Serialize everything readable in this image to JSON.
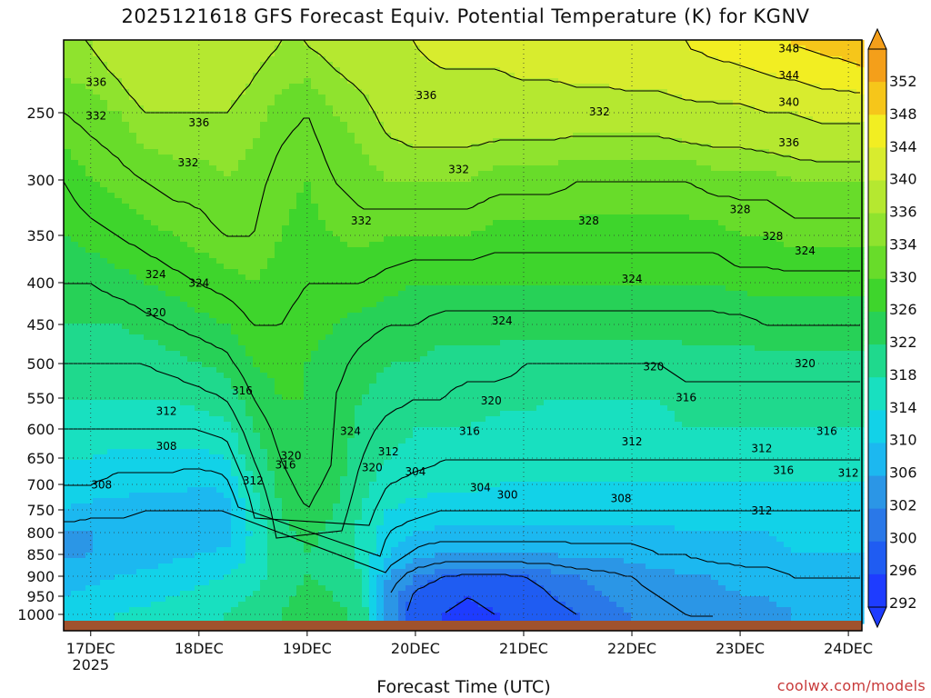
{
  "title": "2025121618 GFS Forecast Equiv. Potential Temperature (K) for KGNV",
  "credit": "coolwx.com/models",
  "colors": {
    "ground": "#a0522d",
    "frame": "#000000"
  },
  "chart_data": {
    "type": "heatmap",
    "title": "2025121618 GFS Forecast Equiv. Potential Temperature (K) for KGNV",
    "xlabel": "Forecast Time (UTC)",
    "ylabel": "",
    "x_ticks": [
      "17DEC",
      "18DEC",
      "19DEC",
      "20DEC",
      "21DEC",
      "22DEC",
      "23DEC",
      "24DEC"
    ],
    "x_year_label": "2025",
    "x_range_days": [
      16.75,
      24.125
    ],
    "y_axis": "pressure (hPa), inverted",
    "y_ticks": [
      250,
      300,
      350,
      400,
      450,
      500,
      550,
      600,
      650,
      700,
      750,
      800,
      850,
      900,
      950,
      1000
    ],
    "y_range": [
      200,
      1030
    ],
    "grid": true,
    "colorbar": {
      "levels": [
        292,
        296,
        300,
        302,
        306,
        310,
        314,
        318,
        322,
        326,
        330,
        334,
        336,
        340,
        344,
        348,
        352
      ],
      "labels": [
        "352",
        "348",
        "344",
        "340",
        "336",
        "334",
        "330",
        "326",
        "322",
        "318",
        "314",
        "310",
        "306",
        "302",
        "300",
        "296",
        "292"
      ],
      "colors": [
        "#1e3cff",
        "#1f5cf2",
        "#2a78e8",
        "#2b96e6",
        "#1cb8f0",
        "#12d2e8",
        "#18e0c0",
        "#1fd98d",
        "#27d157",
        "#3ed52c",
        "#68dc2a",
        "#8fe32e",
        "#b5e830",
        "#d8ec2e",
        "#f2ee22",
        "#f6c61a",
        "#f49f1a"
      ]
    },
    "time_columns_days": [
      16.75,
      17.0,
      17.25,
      17.5,
      17.75,
      18.0,
      18.25,
      18.5,
      18.75,
      19.0,
      19.25,
      19.5,
      19.75,
      20.0,
      20.25,
      20.5,
      20.75,
      21.0,
      21.25,
      21.5,
      21.75,
      22.0,
      22.25,
      22.5,
      22.75,
      23.0,
      23.25,
      23.5,
      23.75,
      24.0,
      24.125
    ],
    "pressure_levels_hpa": [
      200,
      250,
      300,
      350,
      400,
      450,
      500,
      550,
      600,
      650,
      700,
      750,
      800,
      850,
      900,
      950,
      1000
    ],
    "theta_e_k": [
      [
        336,
        336,
        338,
        340,
        340,
        338,
        338,
        337,
        336,
        336,
        337,
        338,
        340,
        340,
        341,
        341,
        341,
        342,
        342,
        343,
        343,
        344,
        344,
        344,
        345,
        346,
        347,
        348,
        349,
        350,
        351
      ],
      [
        332,
        333,
        334,
        336,
        336,
        336,
        336,
        335,
        333,
        332,
        334,
        335,
        337,
        338,
        338,
        338,
        338,
        338,
        338,
        338,
        338,
        338,
        338,
        339,
        339,
        339,
        340,
        340,
        341,
        341,
        341
      ],
      [
        328,
        330,
        331,
        332,
        333,
        333,
        334,
        333,
        331,
        330,
        332,
        333,
        334,
        334,
        334,
        334,
        333,
        333,
        333,
        332,
        332,
        332,
        332,
        332,
        333,
        333,
        333,
        334,
        334,
        334,
        334
      ],
      [
        326,
        327,
        328,
        329,
        330,
        331,
        332,
        332,
        330,
        329,
        330,
        331,
        330,
        330,
        330,
        330,
        329,
        329,
        329,
        329,
        329,
        329,
        329,
        329,
        329,
        330,
        330,
        331,
        331,
        331,
        331
      ],
      [
        324,
        324,
        325,
        326,
        327,
        328,
        329,
        330,
        329,
        328,
        328,
        328,
        327,
        326,
        326,
        326,
        326,
        326,
        326,
        326,
        326,
        326,
        326,
        326,
        326,
        327,
        327,
        327,
        327,
        327,
        327
      ],
      [
        322,
        322,
        322,
        323,
        324,
        325,
        326,
        328,
        328,
        327,
        326,
        325,
        324,
        324,
        323,
        323,
        323,
        323,
        323,
        323,
        323,
        323,
        323,
        323,
        323,
        323,
        324,
        324,
        324,
        324,
        324
      ],
      [
        320,
        320,
        320,
        320,
        321,
        322,
        323,
        326,
        327,
        326,
        325,
        323,
        322,
        322,
        321,
        321,
        321,
        320,
        320,
        320,
        320,
        320,
        320,
        321,
        321,
        321,
        321,
        321,
        321,
        321,
        321
      ],
      [
        318,
        318,
        318,
        318,
        318,
        319,
        320,
        324,
        326,
        326,
        324,
        322,
        321,
        320,
        320,
        319,
        319,
        319,
        318,
        318,
        318,
        318,
        318,
        319,
        319,
        319,
        319,
        319,
        319,
        319,
        319
      ],
      [
        316,
        316,
        316,
        316,
        316,
        316,
        317,
        322,
        325,
        326,
        324,
        321,
        319,
        318,
        318,
        318,
        317,
        317,
        317,
        317,
        317,
        317,
        317,
        318,
        318,
        318,
        318,
        318,
        318,
        318,
        318
      ],
      [
        314,
        314,
        313,
        313,
        313,
        313,
        314,
        320,
        324,
        326,
        324,
        320,
        318,
        317,
        316,
        316,
        316,
        316,
        316,
        316,
        316,
        316,
        316,
        316,
        316,
        316,
        316,
        316,
        316,
        316,
        316
      ],
      [
        312,
        312,
        311,
        311,
        311,
        310,
        311,
        318,
        323,
        325,
        323,
        319,
        316,
        315,
        315,
        315,
        314,
        314,
        314,
        314,
        314,
        314,
        314,
        314,
        314,
        314,
        314,
        314,
        314,
        314,
        314
      ],
      [
        310,
        309,
        309,
        308,
        308,
        308,
        308,
        316,
        322,
        324,
        322,
        318,
        314,
        313,
        312,
        312,
        312,
        312,
        312,
        312,
        312,
        312,
        312,
        312,
        312,
        312,
        312,
        312,
        312,
        312,
        312
      ],
      [
        306,
        306,
        306,
        306,
        306,
        307,
        308,
        315,
        321,
        323,
        321,
        317,
        312,
        310,
        309,
        309,
        309,
        309,
        309,
        309,
        309,
        309,
        309,
        310,
        310,
        310,
        310,
        311,
        311,
        311,
        311
      ],
      [
        305,
        306,
        307,
        308,
        309,
        310,
        311,
        315,
        320,
        322,
        321,
        317,
        310,
        307,
        306,
        306,
        306,
        306,
        306,
        307,
        307,
        307,
        308,
        308,
        309,
        309,
        309,
        310,
        310,
        310,
        310
      ],
      [
        308,
        309,
        310,
        311,
        312,
        313,
        314,
        316,
        320,
        322,
        321,
        318,
        306,
        302,
        300,
        299,
        299,
        300,
        301,
        302,
        303,
        304,
        305,
        306,
        306,
        307,
        307,
        308,
        308,
        308,
        308
      ],
      [
        310,
        311,
        312,
        313,
        314,
        315,
        316,
        318,
        321,
        323,
        322,
        320,
        304,
        299,
        297,
        296,
        297,
        298,
        300,
        301,
        302,
        303,
        304,
        305,
        305,
        306,
        306,
        307,
        307,
        307,
        307
      ],
      [
        312,
        313,
        314,
        315,
        316,
        317,
        318,
        320,
        322,
        324,
        323,
        321,
        304,
        298,
        296,
        295,
        296,
        297,
        299,
        300,
        301,
        302,
        303,
        304,
        304,
        305,
        305,
        306,
        306,
        306,
        306
      ]
    ],
    "contour_labels": [
      "348",
      "344",
      "340",
      "336",
      "336",
      "336",
      "336",
      "332",
      "332",
      "332",
      "332",
      "332",
      "328",
      "328",
      "328",
      "324",
      "324",
      "324",
      "324",
      "324",
      "324",
      "320",
      "320",
      "320",
      "320",
      "316",
      "316",
      "316",
      "316",
      "316",
      "312",
      "312",
      "312",
      "312",
      "312",
      "312",
      "308",
      "308",
      "308",
      "304",
      "304",
      "300",
      "320",
      "320",
      "316",
      "312"
    ]
  }
}
